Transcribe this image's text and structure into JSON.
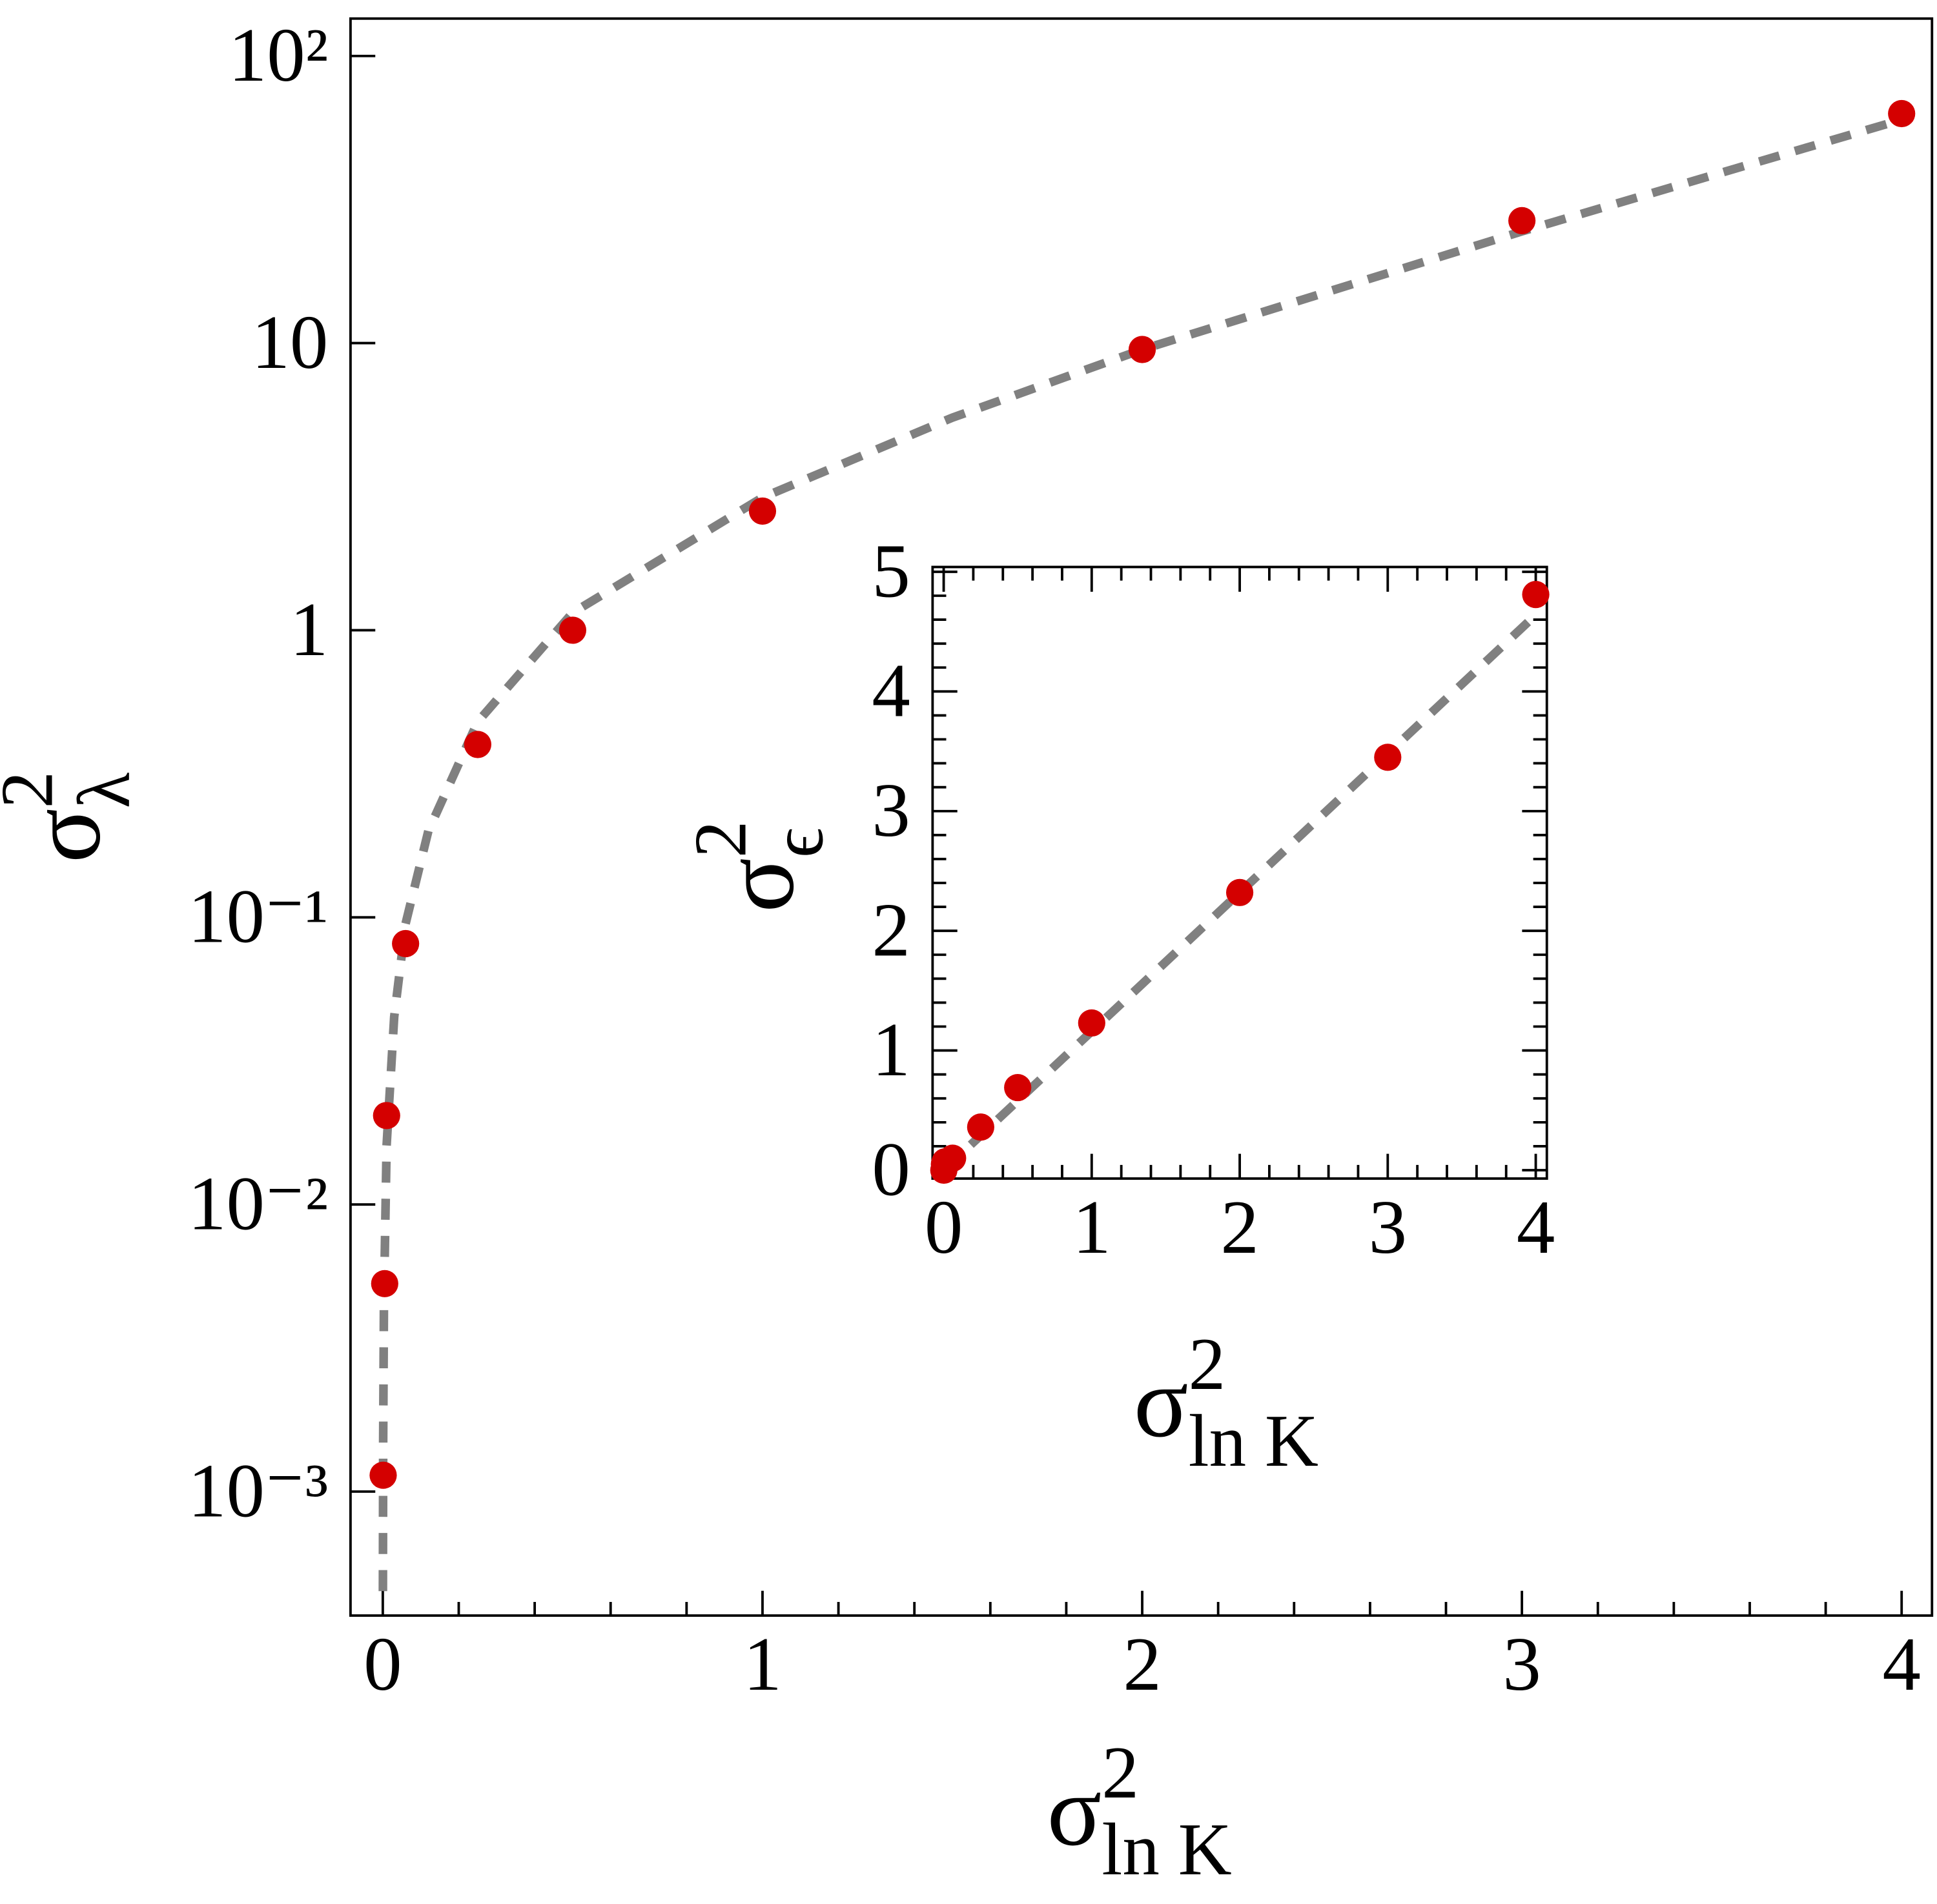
{
  "chart_data": [
    {
      "type": "scatter",
      "ylog": true,
      "x_label": "σ",
      "x_label_sup": "2",
      "x_label_sub": "ln K",
      "y_label": "σ",
      "y_label_sup": "2",
      "y_label_sub": "λ",
      "xlim": [
        -0.085,
        4.08
      ],
      "ylim": [
        0.00037,
        135
      ],
      "xticks": [
        0,
        1,
        2,
        3,
        4
      ],
      "x_minor_ticks": [
        0.2,
        0.4,
        0.6,
        0.8,
        1.2,
        1.4,
        1.6,
        1.8,
        2.2,
        2.4,
        2.6,
        2.8,
        3.2,
        3.4,
        3.6,
        3.8
      ],
      "yticks": [
        {
          "value": 0.001,
          "label": "10⁻³"
        },
        {
          "value": 0.01,
          "label": "10⁻²"
        },
        {
          "value": 0.1,
          "label": "10⁻¹"
        },
        1,
        10,
        {
          "value": 100,
          "label": "10²"
        }
      ],
      "mirror_ticks": false,
      "points": {
        "color": "#d40000",
        "x": [
          0.001,
          0.005,
          0.01,
          0.06,
          0.25,
          0.5,
          1,
          2,
          3,
          4
        ],
        "y": [
          0.00114,
          0.0053,
          0.0204,
          0.081,
          0.4,
          1,
          2.6,
          9.5,
          26.7,
          63
        ]
      },
      "fit": {
        "color": "#808080",
        "x": [
          0.0003,
          0.001,
          0.003,
          0.01,
          0.03,
          0.06,
          0.12,
          0.25,
          0.5,
          1,
          1.5,
          2,
          3,
          4
        ],
        "y": [
          0.00045,
          0.0015,
          0.0045,
          0.016,
          0.045,
          0.095,
          0.2,
          0.48,
          1.15,
          2.9,
          5.5,
          9.5,
          24.5,
          60
        ]
      }
    },
    {
      "type": "scatter",
      "ylog": false,
      "x_label": "σ",
      "x_label_sup": "2",
      "x_label_sub": "ln K",
      "y_label": "σ",
      "y_label_sup": "2",
      "y_label_sub": "ϵ",
      "xlim": [
        -0.075,
        4.075
      ],
      "ylim": [
        -0.07,
        5.04
      ],
      "xticks": [
        0,
        1,
        2,
        3,
        4
      ],
      "x_minor_ticks": [
        0.2,
        0.4,
        0.6,
        0.8,
        1.2,
        1.4,
        1.6,
        1.8,
        2.2,
        2.4,
        2.6,
        2.8,
        3.2,
        3.4,
        3.6,
        3.8
      ],
      "yticks": [
        0,
        1,
        2,
        3,
        4,
        5
      ],
      "y_minor_ticks": [
        0.2,
        0.4,
        0.6,
        0.8,
        1.2,
        1.4,
        1.6,
        1.8,
        2.2,
        2.4,
        2.6,
        2.8,
        3.2,
        3.4,
        3.6,
        3.8,
        4.2,
        4.4,
        4.6,
        4.8
      ],
      "mirror_ticks": true,
      "points": {
        "color": "#d40000",
        "x": [
          0.001,
          0.005,
          0.01,
          0.06,
          0.25,
          0.5,
          1,
          2,
          3,
          4
        ],
        "y": [
          0.0,
          0.05,
          0.07,
          0.1,
          0.36,
          0.69,
          1.23,
          2.32,
          3.45,
          4.81
        ]
      },
      "fit": {
        "color": "#808080",
        "x": [
          0,
          4
        ],
        "y": [
          0,
          4.64
        ]
      }
    }
  ]
}
